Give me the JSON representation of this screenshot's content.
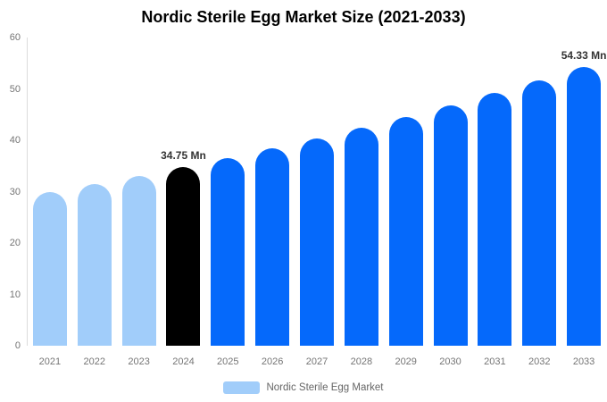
{
  "title": "Nordic Sterile Egg Market Size (2021-2033)",
  "chart_data": {
    "type": "bar",
    "title": "Nordic Sterile Egg Market Size (2021-2033)",
    "categories": [
      "2021",
      "2022",
      "2023",
      "2024",
      "2025",
      "2026",
      "2027",
      "2028",
      "2029",
      "2030",
      "2031",
      "2032",
      "2033"
    ],
    "values": [
      29.9,
      31.5,
      33.1,
      34.75,
      36.5,
      38.4,
      40.3,
      42.4,
      44.5,
      46.8,
      49.2,
      51.7,
      54.33
    ],
    "bar_colors": [
      "#a1cdfa",
      "#a1cdfa",
      "#a1cdfa",
      "#000000",
      "#0569fb",
      "#0569fb",
      "#0569fb",
      "#0569fb",
      "#0569fb",
      "#0569fb",
      "#0569fb",
      "#0569fb",
      "#0569fb"
    ],
    "annotations": [
      {
        "index": 3,
        "text": "34.75 Mn"
      },
      {
        "index": 12,
        "text": "54.33 Mn"
      }
    ],
    "ylim": [
      0,
      60
    ],
    "yticks": [
      0,
      10,
      20,
      30,
      40,
      50,
      60
    ],
    "grid": false,
    "legend_position": "bottom",
    "legend": [
      {
        "label": "Nordic Sterile Egg Market",
        "color": "#a1cdfa"
      }
    ],
    "colors": {
      "historical_bar": "#a1cdfa",
      "base_year_bar": "#000000",
      "forecast_bar": "#0569fb",
      "axis_line": "#dcdcdc",
      "tick_text": "#757575",
      "value_label_text": "#333333",
      "legend_text": "#666666"
    }
  }
}
